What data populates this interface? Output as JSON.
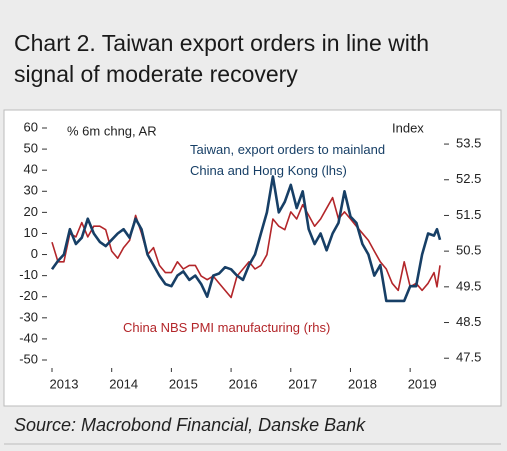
{
  "chart_data": {
    "type": "line",
    "title": "Chart 2. Taiwan export orders in line with signal of moderate recovery",
    "ylabel": "% 6m chng, AR",
    "y2label": "Index",
    "source": "Source: Macrobond Financial, Danske Bank",
    "xlim": [
      2013,
      2019.5
    ],
    "xticks": [
      2013,
      2014,
      2015,
      2016,
      2017,
      2018,
      2019
    ],
    "ylim": [
      -50,
      60
    ],
    "yticks": [
      -50,
      -40,
      -30,
      -20,
      -10,
      0,
      10,
      20,
      30,
      40,
      50,
      60
    ],
    "y2lim": [
      47.45,
      53.95
    ],
    "y2ticks": [
      47.5,
      48.5,
      49.5,
      50.5,
      51.5,
      52.5,
      53.5
    ],
    "x": [
      2013.0,
      2013.1,
      2013.2,
      2013.3,
      2013.4,
      2013.5,
      2013.6,
      2013.7,
      2013.8,
      2013.9,
      2014.0,
      2014.1,
      2014.2,
      2014.3,
      2014.4,
      2014.5,
      2014.6,
      2014.7,
      2014.8,
      2014.9,
      2015.0,
      2015.1,
      2015.2,
      2015.3,
      2015.4,
      2015.5,
      2015.6,
      2015.7,
      2015.8,
      2015.9,
      2016.0,
      2016.1,
      2016.2,
      2016.3,
      2016.4,
      2016.5,
      2016.6,
      2016.7,
      2016.8,
      2016.9,
      2017.0,
      2017.1,
      2017.2,
      2017.3,
      2017.4,
      2017.5,
      2017.6,
      2017.7,
      2017.8,
      2017.9,
      2018.0,
      2018.1,
      2018.2,
      2018.3,
      2018.4,
      2018.5,
      2018.6,
      2018.7,
      2018.8,
      2018.9,
      2019.0,
      2019.1,
      2019.2,
      2019.3,
      2019.4,
      2019.45,
      2019.5
    ],
    "series": [
      {
        "name": "Taiwan, export orders to mainland China and Hong Kong (lhs)",
        "color": "#173f66",
        "values": [
          -7,
          -3,
          0,
          12,
          5,
          8,
          17,
          10,
          6,
          4,
          7,
          10,
          12,
          8,
          17,
          12,
          0,
          -5,
          -10,
          -14,
          -15,
          -10,
          -8,
          -12,
          -10,
          -14,
          -20,
          -10,
          -9,
          -6,
          -7,
          -10,
          -12,
          -5,
          0,
          10,
          20,
          37,
          20,
          25,
          33,
          22,
          30,
          12,
          5,
          10,
          2,
          10,
          15,
          30,
          18,
          15,
          5,
          0,
          -10,
          -5,
          -22,
          -22,
          -22,
          -22,
          -15,
          -15,
          0,
          10,
          9,
          12,
          7
        ]
      },
      {
        "name": "China NBS PMI manufacturing (rhs)",
        "color": "#b3262a",
        "axis": "y2",
        "values": [
          50.75,
          50.2,
          50.2,
          51.0,
          50.9,
          51.3,
          50.9,
          51.2,
          51.2,
          51.1,
          50.5,
          50.3,
          50.6,
          50.8,
          51.5,
          51.0,
          50.4,
          50.6,
          50.1,
          49.9,
          49.9,
          50.2,
          50.0,
          50.1,
          50.1,
          49.8,
          49.7,
          49.8,
          49.6,
          49.4,
          49.2,
          49.8,
          50.0,
          50.2,
          50.0,
          50.1,
          50.4,
          51.4,
          51.2,
          51.1,
          51.6,
          51.4,
          51.8,
          51.5,
          51.2,
          51.4,
          51.7,
          52.0,
          51.4,
          51.6,
          51.4,
          51.2,
          51.0,
          50.8,
          50.5,
          50.2,
          50.0,
          49.6,
          49.4,
          50.2,
          49.5,
          49.6,
          49.4,
          49.6,
          49.9,
          49.5,
          50.1
        ]
      }
    ]
  }
}
